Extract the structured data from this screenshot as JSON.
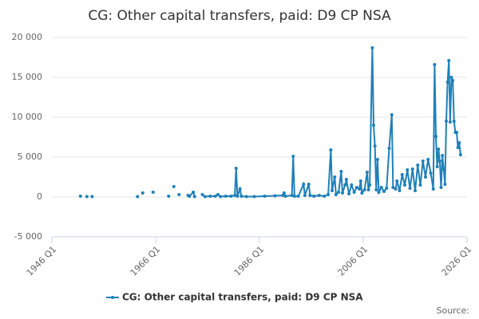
{
  "chart_data": {
    "type": "line",
    "title": "CG: Other capital transfers, paid: D9 CP NSA",
    "source": "Source:",
    "x": [
      1951.5,
      1952.0,
      1952.75,
      1953.25,
      1953.75,
      1958.0,
      1962.5,
      1963.0,
      1963.5,
      1964.5,
      1965.5,
      1967.0,
      1968.5,
      1969.0,
      1969.5,
      1970.0,
      1970.5,
      1971.5,
      1972.25,
      1972.5,
      1973.25,
      1973.5,
      1974.0,
      1975.0,
      1975.5,
      1976.5,
      1977.5,
      1978.0,
      1978.5,
      1979.5,
      1980.5,
      1981.25,
      1981.5,
      1981.75,
      1982.25,
      1982.5,
      1983.5,
      1985.0,
      1987.0,
      1989.0,
      1990.5,
      1990.75,
      1991.0,
      1992.25,
      1992.5,
      1992.75,
      1993.5,
      1994.5,
      1994.75,
      1995.5,
      1995.75,
      1996.5,
      1997.5,
      1998.5,
      1999.25,
      1999.75,
      2000.0,
      2000.5,
      2000.75,
      2001.25,
      2001.75,
      2002.0,
      2002.5,
      2002.75,
      2003.25,
      2003.75,
      2004.25,
      2004.75,
      2005.25,
      2005.5,
      2005.75,
      2006.25,
      2006.75,
      2007.0,
      2007.25,
      2007.75,
      2008.0,
      2008.25,
      2008.5,
      2008.75,
      2009.0,
      2009.5,
      2010.0,
      2010.5,
      2011.0,
      2011.5,
      2011.75,
      2012.25,
      2012.5,
      2013.0,
      2013.5,
      2014.0,
      2014.5,
      2015.0,
      2015.5,
      2016.0,
      2016.5,
      2017.0,
      2017.5,
      2018.0,
      2018.5,
      2019.0,
      2019.5,
      2019.75,
      2020.0,
      2020.25,
      2020.5,
      2020.75,
      2021.0,
      2021.25,
      2021.5,
      2021.75,
      2022.0,
      2022.25,
      2022.5,
      2022.75,
      2023.0,
      2023.25,
      2023.5,
      2023.75,
      2024.0,
      2024.25,
      2024.5,
      2024.75
    ],
    "series": [
      {
        "name": "CG: Other capital transfers, paid: D9 CP NSA",
        "color": "#1f80b8",
        "values": [
          100,
          null,
          50,
          null,
          50,
          null,
          50,
          null,
          500,
          null,
          600,
          null,
          100,
          null,
          1300,
          null,
          300,
          null,
          200,
          100,
          600,
          50,
          null,
          300,
          50,
          100,
          100,
          300,
          50,
          100,
          100,
          200,
          3600,
          100,
          1000,
          100,
          50,
          50,
          100,
          150,
          200,
          500,
          100,
          200,
          5100,
          100,
          100,
          1600,
          200,
          1600,
          200,
          100,
          200,
          100,
          300,
          5900,
          800,
          2500,
          300,
          600,
          3200,
          500,
          1500,
          2200,
          400,
          1500,
          600,
          1200,
          1000,
          2000,
          500,
          900,
          3100,
          900,
          1500,
          18700,
          9000,
          6400,
          900,
          4700,
          600,
          1200,
          700,
          1100,
          6100,
          10300,
          1200,
          1000,
          2000,
          800,
          2800,
          1500,
          3400,
          1100,
          3500,
          800,
          4000,
          1500,
          4500,
          2500,
          4700,
          3000,
          1000,
          16600,
          7600,
          3800,
          6000,
          4500,
          1200,
          5200,
          3500,
          1600,
          9500,
          14400,
          17100,
          9400,
          15000,
          14600,
          9500,
          8100,
          8100,
          6200,
          6800,
          5300
        ]
      }
    ],
    "xlim": [
      1946,
      2026
    ],
    "xticks": [
      {
        "value": 1946,
        "label": "1946 Q1"
      },
      {
        "value": 1966,
        "label": "1966 Q1"
      },
      {
        "value": 1986,
        "label": "1986 Q1"
      },
      {
        "value": 2006,
        "label": "2006 Q1"
      },
      {
        "value": 2026,
        "label": "2026 Q1"
      }
    ],
    "ylim": [
      -5000,
      20000
    ],
    "yticks": [
      {
        "value": -5000,
        "label": "-5 000"
      },
      0,
      {
        "value": 5000,
        "label": "5 000"
      },
      {
        "value": 10000,
        "label": "10 000"
      },
      {
        "value": 15000,
        "label": "15 000"
      },
      {
        "value": 20000,
        "label": "20 000"
      }
    ],
    "grid": true
  }
}
